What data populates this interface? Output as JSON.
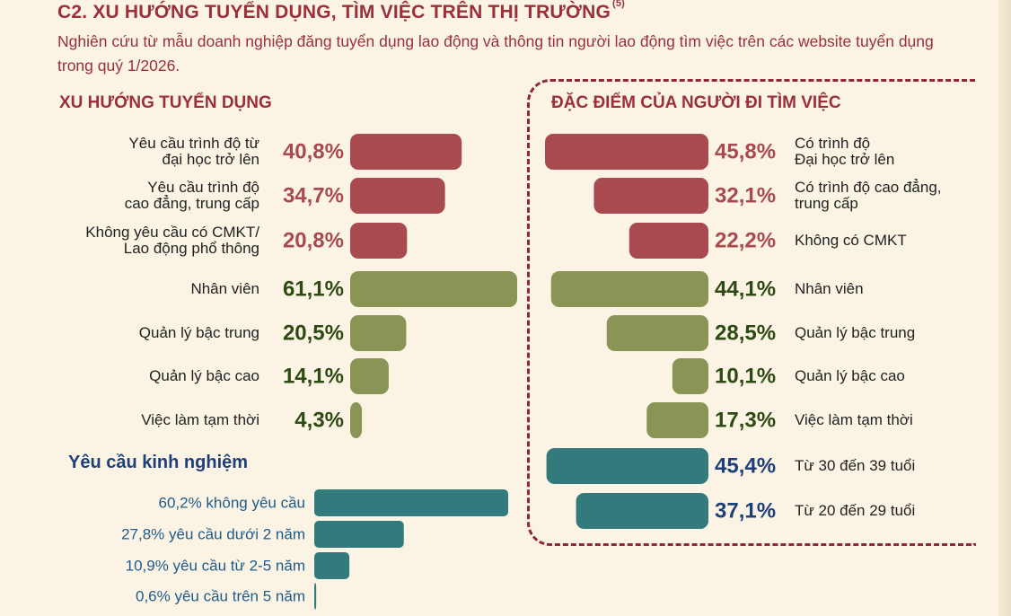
{
  "header": {
    "title": "C2. XU HƯỚNG TUYỂN DỤNG, TÌM VIỆC TRÊN THỊ TRƯỜNG",
    "title_sup": "(5)",
    "subtitle": "Nghiên cứu từ mẫu doanh nghiệp đăng tuyển dụng lao động và thông tin người lao động tìm việc trên các website tuyển dụng trong quý 1/2026."
  },
  "colors": {
    "education": "#a84a50",
    "position": "#8a9456",
    "age": "#327a7c",
    "education_text": "#a84a50",
    "position_text": "#2e4a14",
    "age_text": "#1f3f7a",
    "experience": "#327a7c",
    "experience_text": "#1f5b8a"
  },
  "chart_data": [
    {
      "type": "bar",
      "title": "XU HƯỚNG TUYỂN DỤNG",
      "unit": "%",
      "categories": [
        "Yêu cầu trình độ từ\nđại học trở lên",
        "Yêu cầu trình độ\ncao đẳng, trung cấp",
        "Không yêu cầu có CMKT/\nLao động phổ thông",
        "Nhân viên",
        "Quản lý bậc trung",
        "Quản lý bậc cao",
        "Việc làm tạm thời"
      ],
      "values": [
        40.8,
        34.7,
        20.8,
        61.1,
        20.5,
        14.1,
        4.3
      ],
      "value_labels": [
        "40,8%",
        "34,7%",
        "20,8%",
        "61,1%",
        "20,5%",
        "14,1%",
        "4,3%"
      ],
      "groups": [
        "education",
        "education",
        "education",
        "position",
        "position",
        "position",
        "position"
      ]
    },
    {
      "type": "bar",
      "title": "ĐẶC ĐIỂM CỦA NGƯỜI ĐI TÌM VIỆC",
      "unit": "%",
      "categories": [
        "Có trình độ\nĐại học trở lên",
        "Có trình độ cao đẳng,\ntrung cấp",
        "Không có CMKT",
        "Nhân viên",
        "Quản lý bậc trung",
        "Quản lý bậc cao",
        "Việc làm tạm thời",
        "Từ 30 đến 39 tuổi",
        "Từ 20 đến 29 tuổi"
      ],
      "values": [
        45.8,
        32.1,
        22.2,
        44.1,
        28.5,
        10.1,
        17.3,
        45.4,
        37.1
      ],
      "value_labels": [
        "45,8%",
        "32,1%",
        "22,2%",
        "44,1%",
        "28,5%",
        "10,1%",
        "17,3%",
        "45,4%",
        "37,1%"
      ],
      "groups": [
        "education",
        "education",
        "education",
        "position",
        "position",
        "position",
        "position",
        "age",
        "age"
      ]
    },
    {
      "type": "bar",
      "title": "Yêu cầu kinh nghiệm",
      "unit": "%",
      "categories": [
        "không yêu cầu",
        "yêu cầu dưới  2 năm",
        "yêu cầu từ 2-5 năm",
        "yêu cầu trên 5 năm"
      ],
      "values": [
        60.2,
        27.8,
        10.9,
        0.6
      ],
      "labels": [
        "60,2% không yêu cầu",
        "27,8% yêu cầu dưới  2 năm",
        "10,9% yêu cầu từ 2-5 năm",
        "0,6% yêu cầu trên 5 năm"
      ]
    }
  ]
}
